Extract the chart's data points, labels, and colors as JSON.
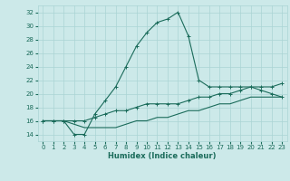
{
  "xlabel": "Humidex (Indice chaleur)",
  "xlim": [
    -0.5,
    23.5
  ],
  "ylim": [
    13,
    33
  ],
  "xticks": [
    0,
    1,
    2,
    3,
    4,
    5,
    6,
    7,
    8,
    9,
    10,
    11,
    12,
    13,
    14,
    15,
    16,
    17,
    18,
    19,
    20,
    21,
    22,
    23
  ],
  "yticks": [
    14,
    16,
    18,
    20,
    22,
    24,
    26,
    28,
    30,
    32
  ],
  "bg_color": "#cce9e9",
  "grid_color": "#aad4d4",
  "line_color": "#1a6b5a",
  "line1_x": [
    0,
    1,
    2,
    3,
    4,
    5,
    6,
    7,
    8,
    9,
    10,
    11,
    12,
    13,
    14,
    15,
    16,
    17,
    18,
    19,
    20,
    21,
    22,
    23
  ],
  "line1_y": [
    16,
    16,
    16,
    14,
    14,
    17,
    19,
    21,
    24,
    27,
    29,
    30.5,
    31,
    32,
    28.5,
    22,
    21,
    21,
    21,
    21,
    21,
    20.5,
    20,
    19.5
  ],
  "line2_x": [
    0,
    1,
    2,
    3,
    4,
    5,
    6,
    7,
    8,
    9,
    10,
    11,
    12,
    13,
    14,
    15,
    16,
    17,
    18,
    19,
    20,
    21,
    22,
    23
  ],
  "line2_y": [
    16,
    16,
    16,
    16,
    16,
    16.5,
    17,
    17.5,
    17.5,
    18,
    18.5,
    18.5,
    18.5,
    18.5,
    19,
    19.5,
    19.5,
    20,
    20,
    20.5,
    21,
    21,
    21,
    21.5
  ],
  "line3_x": [
    0,
    1,
    2,
    3,
    4,
    5,
    6,
    7,
    8,
    9,
    10,
    11,
    12,
    13,
    14,
    15,
    16,
    17,
    18,
    19,
    20,
    21,
    22,
    23
  ],
  "line3_y": [
    16,
    16,
    16,
    15.5,
    15,
    15,
    15,
    15,
    15.5,
    16,
    16,
    16.5,
    16.5,
    17,
    17.5,
    17.5,
    18,
    18.5,
    18.5,
    19,
    19.5,
    19.5,
    19.5,
    19.5
  ]
}
